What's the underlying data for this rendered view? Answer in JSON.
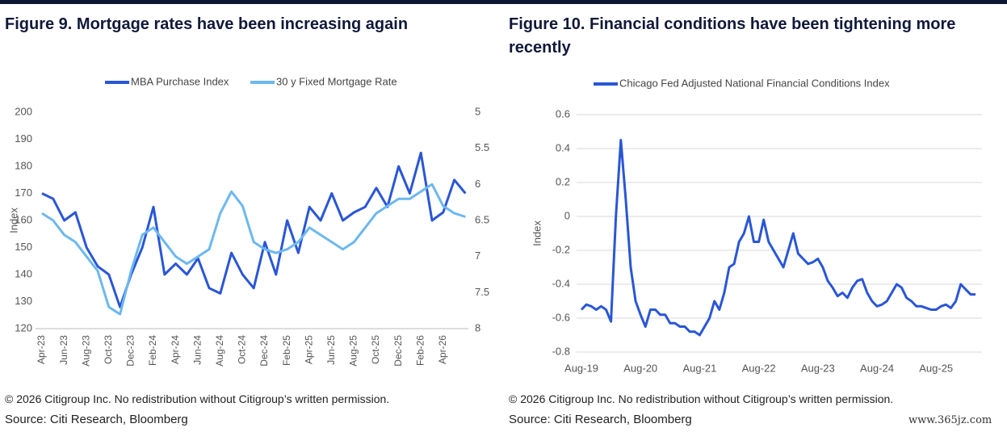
{
  "chart_data": [
    {
      "type": "line",
      "title": "Figure 9. Mortgage rates have been increasing again",
      "y_label": "Index",
      "categories": [
        "Apr-23",
        null,
        "Jun-23",
        null,
        "Aug-23",
        null,
        "Oct-23",
        null,
        "Dec-23",
        null,
        "Feb-24",
        null,
        "Apr-24",
        null,
        "Jun-24",
        null,
        "Aug-24",
        null,
        "Oct-24",
        null,
        "Dec-24",
        null,
        "Feb-25",
        null,
        "Apr-25",
        null,
        "Jun-25",
        null,
        "Aug-25",
        null,
        "Oct-25",
        null,
        "Dec-25",
        null,
        "Feb-26",
        null,
        "Apr-26",
        null,
        null
      ],
      "series": [
        {
          "name": "MBA Purchase Index",
          "color": "#2a56d6",
          "values": [
            170,
            168,
            160,
            163,
            150,
            143,
            140,
            128,
            140,
            150,
            165,
            140,
            144,
            140,
            146,
            135,
            133,
            148,
            140,
            135,
            152,
            140,
            160,
            148,
            165,
            160,
            170,
            160,
            163,
            165,
            172,
            165,
            180,
            170,
            185,
            160,
            163,
            175,
            170
          ]
        },
        {
          "name": "30 y Fixed Mortgage Rate",
          "color": "#6cb8f0",
          "axis": "y2",
          "values": [
            6.4,
            6.5,
            6.7,
            6.8,
            7.0,
            7.2,
            7.7,
            7.8,
            7.2,
            6.7,
            6.6,
            6.8,
            7.0,
            7.1,
            7.0,
            6.9,
            6.4,
            6.1,
            6.3,
            6.8,
            6.9,
            6.95,
            6.9,
            6.8,
            6.6,
            6.7,
            6.8,
            6.9,
            6.8,
            6.6,
            6.4,
            6.3,
            6.2,
            6.2,
            6.1,
            6.0,
            6.3,
            6.4,
            6.45
          ]
        }
      ],
      "ylim": [
        120,
        200
      ],
      "yticks": [
        120,
        130,
        140,
        150,
        160,
        170,
        180,
        190,
        200
      ],
      "y2lim": [
        8,
        5
      ],
      "y2ticks": [
        5,
        5.5,
        6,
        6.5,
        7,
        7.5,
        8
      ],
      "grid": false,
      "legend": "top"
    },
    {
      "type": "line",
      "title": "Figure 10. Financial conditions have been tightening more recently",
      "y_label": "Index",
      "categories": [
        "Aug-19",
        null,
        null,
        null,
        null,
        null,
        null,
        null,
        null,
        null,
        null,
        null,
        "Aug-20",
        null,
        null,
        null,
        null,
        null,
        null,
        null,
        null,
        null,
        null,
        null,
        "Aug-21",
        null,
        null,
        null,
        null,
        null,
        null,
        null,
        null,
        null,
        null,
        null,
        "Aug-22",
        null,
        null,
        null,
        null,
        null,
        null,
        null,
        null,
        null,
        null,
        null,
        "Aug-23",
        null,
        null,
        null,
        null,
        null,
        null,
        null,
        null,
        null,
        null,
        null,
        "Aug-24",
        null,
        null,
        null,
        null,
        null,
        null,
        null,
        null,
        null,
        null,
        null,
        "Aug-25",
        null,
        null,
        null,
        null,
        null,
        null,
        null,
        null
      ],
      "series": [
        {
          "name": "Chicago Fed Adjusted National Financial Conditions Index",
          "color": "#2a56d6",
          "values": [
            -0.55,
            -0.52,
            -0.53,
            -0.55,
            -0.53,
            -0.55,
            -0.62,
            0.0,
            0.45,
            0.1,
            -0.3,
            -0.5,
            -0.58,
            -0.65,
            -0.55,
            -0.55,
            -0.58,
            -0.58,
            -0.63,
            -0.63,
            -0.65,
            -0.65,
            -0.68,
            -0.68,
            -0.7,
            -0.65,
            -0.6,
            -0.5,
            -0.55,
            -0.45,
            -0.3,
            -0.28,
            -0.15,
            -0.1,
            0.0,
            -0.15,
            -0.15,
            -0.02,
            -0.15,
            -0.2,
            -0.25,
            -0.3,
            -0.2,
            -0.1,
            -0.22,
            -0.25,
            -0.28,
            -0.27,
            -0.25,
            -0.3,
            -0.38,
            -0.42,
            -0.47,
            -0.45,
            -0.48,
            -0.42,
            -0.38,
            -0.37,
            -0.45,
            -0.5,
            -0.53,
            -0.52,
            -0.5,
            -0.45,
            -0.4,
            -0.42,
            -0.48,
            -0.5,
            -0.53,
            -0.53,
            -0.54,
            -0.55,
            -0.55,
            -0.53,
            -0.52,
            -0.54,
            -0.5,
            -0.4,
            -0.43,
            -0.46,
            -0.46
          ]
        }
      ],
      "ylim": [
        -0.8,
        0.6
      ],
      "yticks": [
        -0.8,
        -0.6,
        -0.4,
        -0.2,
        0,
        0.2,
        0.4,
        0.6
      ],
      "grid": true,
      "legend": "top"
    }
  ],
  "footers": [
    {
      "copyright": "© 2026 Citigroup Inc. No redistribution without Citigroup’s written permission.",
      "source": "Source: Citi Research, Bloomberg"
    },
    {
      "copyright": "© 2026 Citigroup Inc. No redistribution without Citigroup’s written permission.",
      "source": "Source: Citi Research, Bloomberg"
    }
  ],
  "watermark": "www.365jz.com"
}
